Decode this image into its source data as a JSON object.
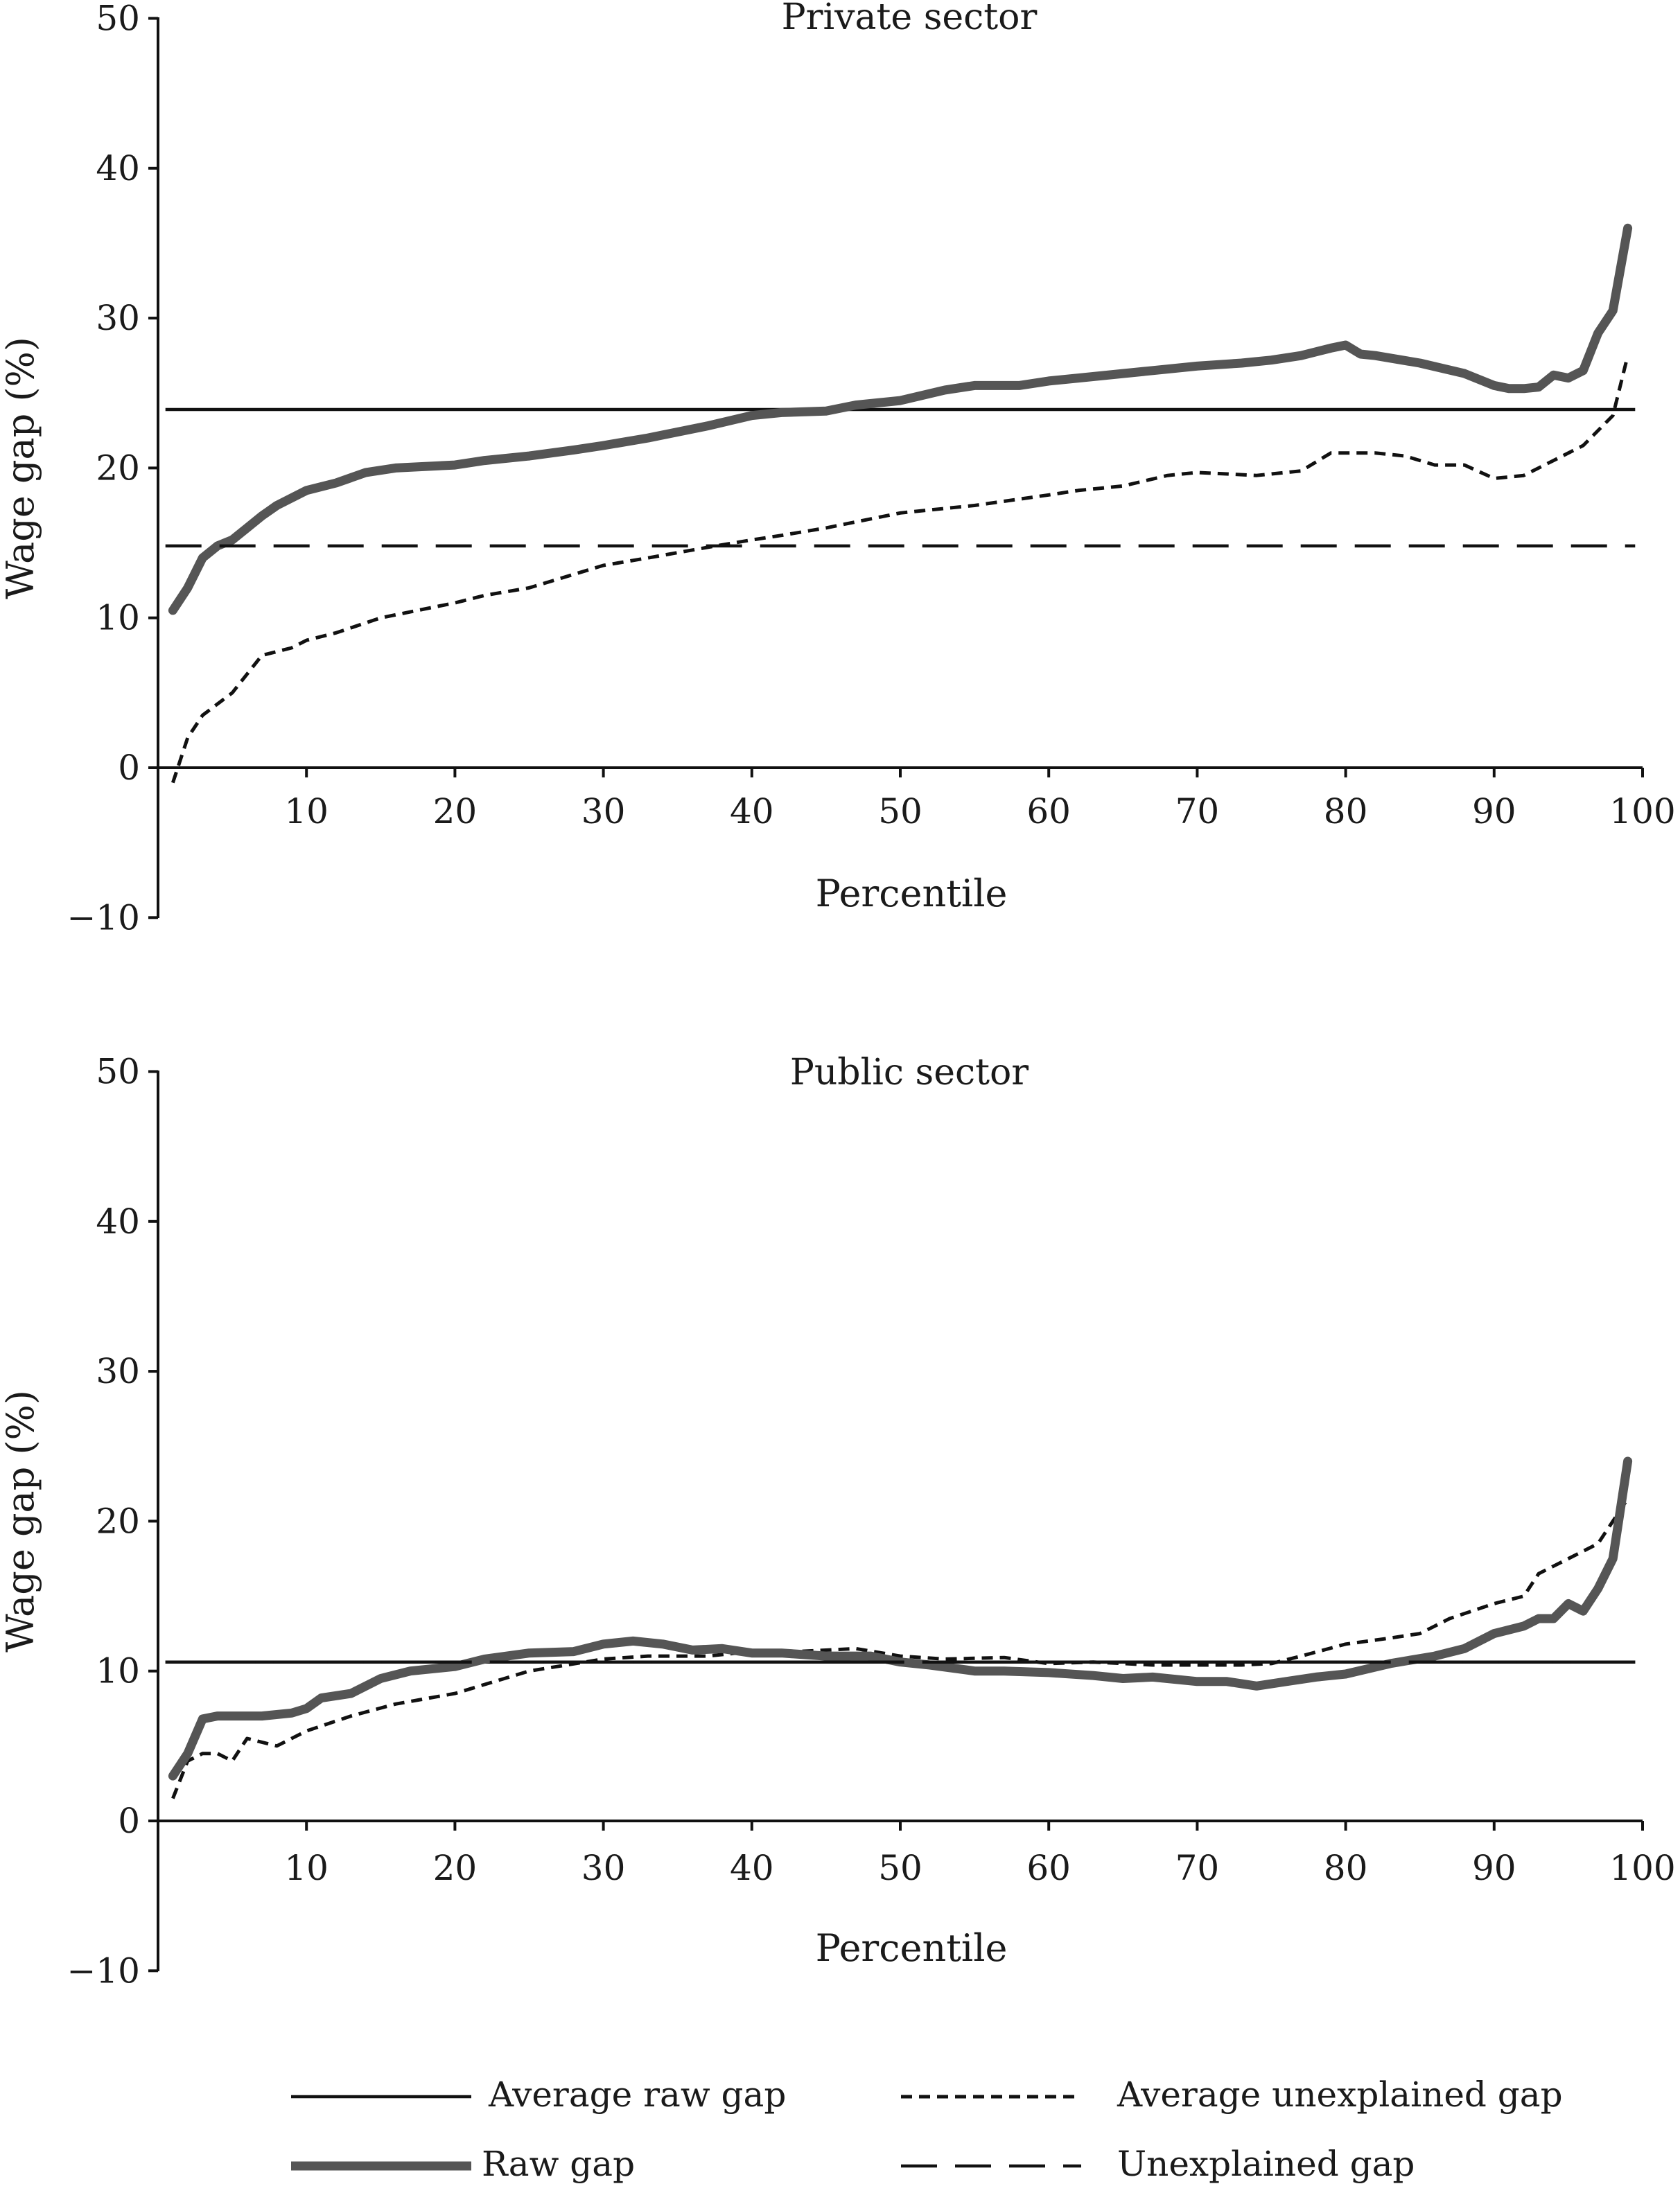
{
  "chart_data": [
    {
      "type": "line",
      "title": "Private sector",
      "xlabel": "Percentile",
      "ylabel": "Wage gap (%)",
      "xlim": [
        0,
        100
      ],
      "ylim": [
        -10,
        50
      ],
      "xticks": [
        "10",
        "20",
        "30",
        "40",
        "50",
        "60",
        "70",
        "80",
        "90",
        "100"
      ],
      "yticks": [
        "−10",
        "0",
        "10",
        "20",
        "30",
        "40",
        "50"
      ],
      "grid": false,
      "series": [
        {
          "name": "Average raw gap",
          "style": "solid-thin",
          "color": "#111111",
          "x": [
            0.5,
            99.5
          ],
          "y": [
            23.9,
            23.9
          ]
        },
        {
          "name": "Average unexplained gap",
          "style": "dotted",
          "color": "#111111",
          "x": [
            1,
            2,
            3,
            5,
            7,
            9,
            10,
            12,
            15,
            20,
            22,
            25,
            30,
            33,
            37,
            40,
            42,
            45,
            50,
            55,
            60,
            62,
            65,
            68,
            70,
            74,
            77,
            79,
            82,
            84,
            86,
            88,
            90,
            92,
            94,
            96,
            98,
            99
          ],
          "y": [
            -1,
            2,
            3.5,
            5,
            7.5,
            8,
            8.5,
            9,
            10,
            11,
            11.5,
            12,
            13.5,
            14,
            14.7,
            15.2,
            15.5,
            16,
            17,
            17.5,
            18.2,
            18.5,
            18.8,
            19.5,
            19.7,
            19.5,
            19.8,
            21,
            21,
            20.8,
            20.2,
            20.2,
            19.3,
            19.5,
            20.5,
            21.5,
            23.5,
            27.5
          ]
        },
        {
          "name": "Raw gap",
          "style": "solid-thick",
          "color": "#555555",
          "x": [
            1,
            2,
            3,
            4,
            5,
            6,
            7,
            8,
            10,
            12,
            14,
            16,
            20,
            22,
            25,
            28,
            30,
            33,
            37,
            40,
            42,
            45,
            47,
            50,
            53,
            55,
            58,
            60,
            62,
            65,
            67,
            70,
            73,
            75,
            77,
            79,
            80,
            81,
            82,
            85,
            88,
            90,
            91,
            92,
            93,
            94,
            95,
            96,
            97,
            98,
            99
          ],
          "y": [
            10.5,
            12,
            14,
            14.8,
            15.2,
            16,
            16.8,
            17.5,
            18.5,
            19,
            19.7,
            20,
            20.2,
            20.5,
            20.8,
            21.2,
            21.5,
            22,
            22.8,
            23.5,
            23.7,
            23.8,
            24.2,
            24.5,
            25.2,
            25.5,
            25.5,
            25.8,
            26,
            26.3,
            26.5,
            26.8,
            27,
            27.2,
            27.5,
            28,
            28.2,
            27.6,
            27.5,
            27,
            26.3,
            25.5,
            25.3,
            25.3,
            25.4,
            26.2,
            26,
            26.5,
            29,
            30.5,
            36
          ]
        },
        {
          "name": "Unexplained gap",
          "style": "dashed",
          "color": "#111111",
          "x": [
            0.5,
            99.5
          ],
          "y": [
            14.8,
            14.8
          ]
        }
      ]
    },
    {
      "type": "line",
      "title": "Public sector",
      "xlabel": "Percentile",
      "ylabel": "Wage gap (%)",
      "xlim": [
        0,
        100
      ],
      "ylim": [
        -10,
        50
      ],
      "xticks": [
        "10",
        "20",
        "30",
        "40",
        "50",
        "60",
        "70",
        "80",
        "90",
        "100"
      ],
      "yticks": [
        "−10",
        "0",
        "10",
        "20",
        "30",
        "40",
        "50"
      ],
      "grid": false,
      "series": [
        {
          "name": "Average raw gap",
          "style": "solid-thin",
          "color": "#111111",
          "x": [
            0.5,
            99.5
          ],
          "y": [
            10.6,
            10.6
          ]
        },
        {
          "name": "Average unexplained gap",
          "style": "dotted",
          "color": "#111111",
          "x": [
            1,
            2,
            3,
            4,
            5,
            6,
            8,
            10,
            13,
            16,
            20,
            25,
            30,
            33,
            37,
            40,
            43,
            47,
            50,
            53,
            57,
            60,
            63,
            67,
            70,
            73,
            75,
            77,
            80,
            83,
            85,
            87,
            90,
            92,
            93,
            95,
            97,
            98,
            99
          ],
          "y": [
            1.5,
            4,
            4.5,
            4.5,
            4,
            5.5,
            5,
            6,
            7,
            7.8,
            8.5,
            10,
            10.8,
            11,
            11,
            11.3,
            11.3,
            11.5,
            11,
            10.8,
            10.9,
            10.5,
            10.6,
            10.4,
            10.4,
            10.4,
            10.5,
            11,
            11.8,
            12.2,
            12.5,
            13.5,
            14.5,
            15,
            16.5,
            17.5,
            18.5,
            20,
            21.5
          ]
        },
        {
          "name": "Raw gap",
          "style": "solid-thick",
          "color": "#555555",
          "x": [
            1,
            2,
            3,
            4,
            5,
            7,
            9,
            10,
            11,
            13,
            15,
            17,
            20,
            22,
            25,
            28,
            30,
            32,
            34,
            36,
            38,
            40,
            42,
            45,
            48,
            50,
            52,
            55,
            57,
            60,
            63,
            65,
            67,
            70,
            72,
            74,
            76,
            78,
            80,
            83,
            86,
            88,
            90,
            92,
            93,
            94,
            95,
            96,
            97,
            98,
            99
          ],
          "y": [
            3,
            4.5,
            6.8,
            7,
            7,
            7,
            7.2,
            7.5,
            8.2,
            8.5,
            9.5,
            10,
            10.3,
            10.8,
            11.2,
            11.3,
            11.8,
            12,
            11.8,
            11.4,
            11.5,
            11.2,
            11.2,
            11,
            11,
            10.6,
            10.4,
            10,
            10,
            9.9,
            9.7,
            9.5,
            9.6,
            9.3,
            9.3,
            9,
            9.3,
            9.6,
            9.8,
            10.5,
            11,
            11.5,
            12.5,
            13,
            13.5,
            13.5,
            14.5,
            14,
            15.5,
            17.5,
            24
          ]
        },
        {
          "name": "Unexplained gap",
          "style": "dashed",
          "color": "#111111",
          "x": [
            0.5,
            99.5
          ],
          "y": [
            10.6,
            10.6
          ]
        }
      ]
    }
  ],
  "legend": {
    "placement": "bottom",
    "items": [
      {
        "label": "Average raw gap",
        "style": "solid-thin"
      },
      {
        "label": "Average unexplained gap",
        "style": "dotted"
      },
      {
        "label": "Raw gap",
        "style": "solid-thick"
      },
      {
        "label": "Unexplained gap",
        "style": "dashed"
      }
    ]
  }
}
